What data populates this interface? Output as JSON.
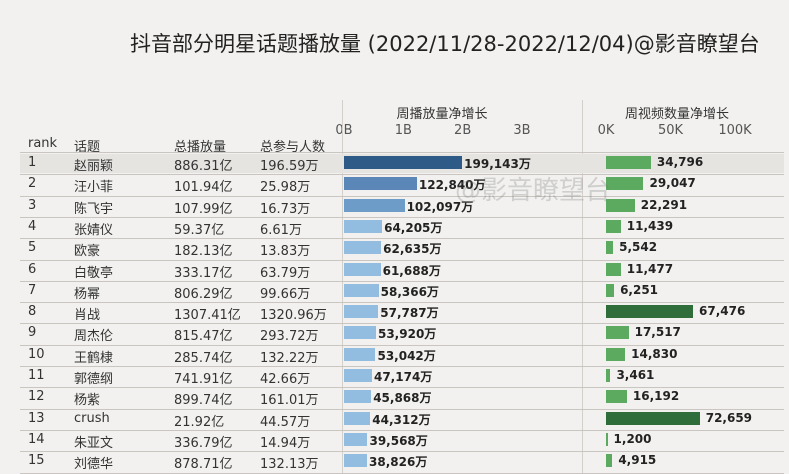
{
  "title": "抖音部分明星话题播放量 (2022/11/28-2022/12/04)@影音瞭望台",
  "watermark": "@影音瞭望台",
  "columns": {
    "rank": "rank",
    "topic": "话题",
    "total_plays": "总播放量",
    "total_participants": "总参与人数",
    "chart1_title": "周播放量净增长",
    "chart2_title": "周视频数量净增长"
  },
  "chart_data": [
    {
      "type": "bar",
      "orientation": "horizontal",
      "title": "周播放量净增长",
      "axis_ticks": [
        "0B",
        "1B",
        "2B",
        "3B"
      ],
      "xlim": [
        0,
        3000000000
      ],
      "categories": [
        "赵丽颖",
        "汪小菲",
        "陈飞宇",
        "张婧仪",
        "欧豪",
        "白敬亭",
        "杨幂",
        "肖战",
        "周杰伦",
        "王鹤棣",
        "郭德纲",
        "杨紫",
        "crush",
        "朱亚文",
        "刘德华"
      ],
      "values": [
        1991430000,
        1228400000,
        1020970000,
        642050000,
        626350000,
        616880000,
        583660000,
        577870000,
        539200000,
        530420000,
        471740000,
        458680000,
        443120000,
        395680000,
        388260000
      ],
      "labels": [
        "199,143万",
        "122,840万",
        "102,097万",
        "64,205万",
        "62,635万",
        "61,688万",
        "58,366万",
        "57,787万",
        "53,920万",
        "53,042万",
        "47,174万",
        "45,868万",
        "44,312万",
        "39,568万",
        "38,826万"
      ],
      "colors": [
        "#2e5a88",
        "#5b87b8",
        "#6e9cc9",
        "#93bde0",
        "#93bde0",
        "#93bde0",
        "#93bde0",
        "#93bde0",
        "#93bde0",
        "#93bde0",
        "#93bde0",
        "#93bde0",
        "#93bde0",
        "#93bde0",
        "#93bde0"
      ]
    },
    {
      "type": "bar",
      "orientation": "horizontal",
      "title": "周视频数量净增长",
      "axis_ticks": [
        "0K",
        "50K",
        "100K"
      ],
      "xlim": [
        0,
        100000
      ],
      "categories": [
        "赵丽颖",
        "汪小菲",
        "陈飞宇",
        "张婧仪",
        "欧豪",
        "白敬亭",
        "杨幂",
        "肖战",
        "周杰伦",
        "王鹤棣",
        "郭德纲",
        "杨紫",
        "crush",
        "朱亚文",
        "刘德华"
      ],
      "values": [
        34796,
        29047,
        22291,
        11439,
        5542,
        11477,
        6251,
        67476,
        17517,
        14830,
        3461,
        16192,
        72659,
        1200,
        4915
      ],
      "labels": [
        "34,796",
        "29,047",
        "22,291",
        "11,439",
        "5,542",
        "11,477",
        "6,251",
        "67,476",
        "17,517",
        "14,830",
        "3,461",
        "16,192",
        "72,659",
        "1,200",
        "4,915"
      ],
      "colors": [
        "#5caa5f",
        "#5caa5f",
        "#5caa5f",
        "#5caa5f",
        "#5caa5f",
        "#5caa5f",
        "#5caa5f",
        "#2f6e3b",
        "#5caa5f",
        "#5caa5f",
        "#5caa5f",
        "#5caa5f",
        "#2f6e3b",
        "#5caa5f",
        "#5caa5f"
      ]
    }
  ],
  "rows": [
    {
      "rank": "1",
      "topic": "赵丽颖",
      "total": "886.31亿",
      "participants": "196.59万"
    },
    {
      "rank": "2",
      "topic": "汪小菲",
      "total": "101.94亿",
      "participants": "25.98万"
    },
    {
      "rank": "3",
      "topic": "陈飞宇",
      "total": "107.99亿",
      "participants": "16.73万"
    },
    {
      "rank": "4",
      "topic": "张婧仪",
      "total": "59.37亿",
      "participants": "6.61万"
    },
    {
      "rank": "5",
      "topic": "欧豪",
      "total": "182.13亿",
      "participants": "13.83万"
    },
    {
      "rank": "6",
      "topic": "白敬亭",
      "total": "333.17亿",
      "participants": "63.79万"
    },
    {
      "rank": "7",
      "topic": "杨幂",
      "total": "806.29亿",
      "participants": "99.66万"
    },
    {
      "rank": "8",
      "topic": "肖战",
      "total": "1307.41亿",
      "participants": "1320.96万"
    },
    {
      "rank": "9",
      "topic": "周杰伦",
      "total": "815.47亿",
      "participants": "293.72万"
    },
    {
      "rank": "10",
      "topic": "王鹤棣",
      "total": "285.74亿",
      "participants": "132.22万"
    },
    {
      "rank": "11",
      "topic": "郭德纲",
      "total": "741.91亿",
      "participants": "42.66万"
    },
    {
      "rank": "12",
      "topic": "杨紫",
      "total": "899.74亿",
      "participants": "161.01万"
    },
    {
      "rank": "13",
      "topic": "crush",
      "total": "21.92亿",
      "participants": "44.57万"
    },
    {
      "rank": "14",
      "topic": "朱亚文",
      "total": "336.79亿",
      "participants": "14.94万"
    },
    {
      "rank": "15",
      "topic": "刘德华",
      "total": "878.71亿",
      "participants": "132.13万"
    }
  ]
}
